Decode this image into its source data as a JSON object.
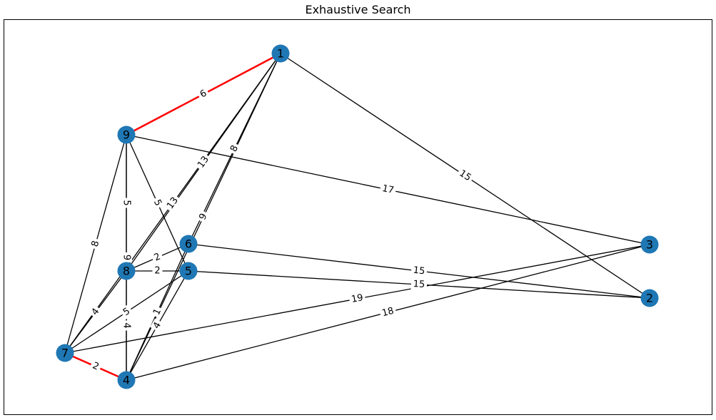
{
  "title": "Exhaustive Search",
  "colors": {
    "node": "#1f77b4",
    "edge": "#000000",
    "highlight": "#ff0000",
    "label_bg": "#ffffff"
  },
  "nodes": [
    "1",
    "2",
    "3",
    "4",
    "5",
    "6",
    "7",
    "8",
    "9"
  ],
  "edges": [
    {
      "source": "1",
      "target": "9",
      "weight": "6",
      "highlight": true
    },
    {
      "source": "1",
      "target": "2",
      "weight": "15",
      "highlight": false
    },
    {
      "source": "1",
      "target": "6",
      "weight": "8",
      "highlight": false
    },
    {
      "source": "1",
      "target": "4",
      "weight": "9",
      "highlight": false
    },
    {
      "source": "1",
      "target": "8",
      "weight": "13",
      "highlight": false
    },
    {
      "source": "1",
      "target": "7",
      "weight": "13",
      "highlight": false
    },
    {
      "source": "9",
      "target": "3",
      "weight": "17",
      "highlight": false
    },
    {
      "source": "9",
      "target": "8",
      "weight": "5",
      "highlight": false
    },
    {
      "source": "9",
      "target": "5",
      "weight": "5",
      "highlight": false
    },
    {
      "source": "9",
      "target": "7",
      "weight": "8",
      "highlight": false
    },
    {
      "source": "6",
      "target": "2",
      "weight": "15",
      "highlight": false
    },
    {
      "source": "6",
      "target": "8",
      "weight": "2",
      "highlight": false
    },
    {
      "source": "6",
      "target": "4",
      "weight": "1",
      "highlight": false
    },
    {
      "source": "8",
      "target": "5",
      "weight": "2",
      "highlight": false
    },
    {
      "source": "5",
      "target": "2",
      "weight": "15",
      "highlight": false
    },
    {
      "source": "8",
      "target": "7",
      "weight": "4",
      "highlight": false
    },
    {
      "source": "8",
      "target": "4",
      "weight": "4",
      "highlight": false
    },
    {
      "source": "5",
      "target": "7",
      "weight": "5",
      "highlight": false
    },
    {
      "source": "5",
      "target": "4",
      "weight": "4",
      "highlight": false
    },
    {
      "source": "7",
      "target": "3",
      "weight": "19",
      "highlight": false
    },
    {
      "source": "4",
      "target": "3",
      "weight": "18",
      "highlight": false
    },
    {
      "source": "7",
      "target": "4",
      "weight": "2",
      "highlight": true
    },
    {
      "source": "9",
      "target": "4",
      "weight": "9",
      "highlight": false
    }
  ]
}
